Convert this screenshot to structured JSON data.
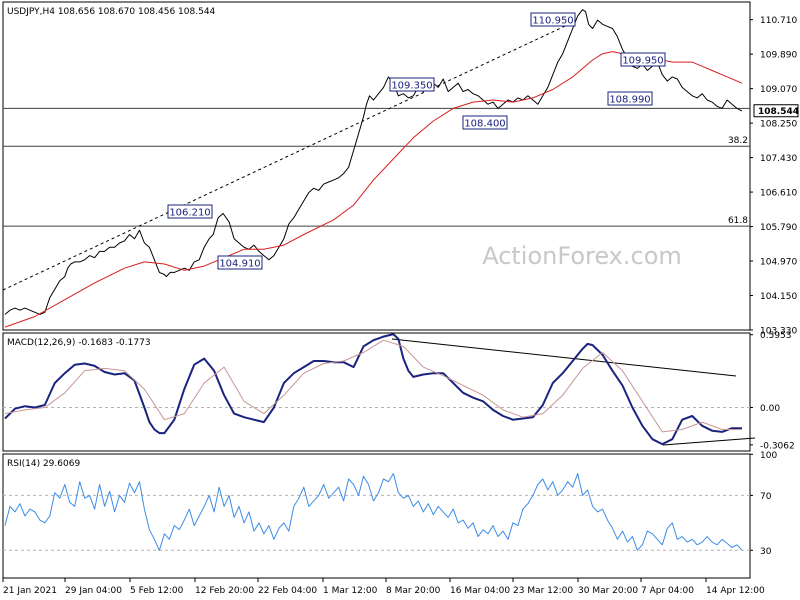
{
  "chart_data": [
    {
      "type": "line",
      "panel": "price",
      "header": "USDJPY,H4  108.656 108.670 108.456 108.544",
      "ylim": [
        103.33,
        111.13
      ],
      "y_ticks": [
        "110.710",
        "109.890",
        "109.070",
        "108.250",
        "107.430",
        "106.610",
        "105.790",
        "104.970",
        "104.150",
        "103.330"
      ],
      "x_ticks": [
        "21 Jan 2021",
        "29 Jan 04:00",
        "5 Feb 12:00",
        "12 Feb 20:00",
        "22 Feb 04:00",
        "1 Mar 12:00",
        "8 Mar 20:00",
        "16 Mar 04:00",
        "23 Mar 12:00",
        "30 Mar 20:00",
        "7 Apr 04:00",
        "14 Apr 12:00"
      ],
      "current_price": "108.544",
      "watermark": "ActionForex.com",
      "series": [
        {
          "color": "#000000",
          "x": [
            0,
            5,
            10,
            15,
            20,
            25,
            30,
            35,
            40,
            45,
            50,
            55,
            60,
            63,
            66,
            70,
            75,
            80,
            85,
            90,
            95,
            100,
            105,
            110,
            115,
            120,
            125,
            130,
            135,
            140,
            145,
            150,
            155,
            160,
            162,
            166,
            170,
            175,
            180,
            185,
            190,
            195,
            200,
            205,
            209,
            214,
            219,
            225,
            230,
            235,
            240,
            245,
            250,
            255,
            260,
            265,
            270,
            275,
            280,
            285,
            290,
            295,
            300,
            305,
            310,
            315,
            320,
            325,
            330,
            335,
            340,
            345,
            350,
            355,
            360,
            363,
            366,
            370,
            375,
            380,
            385,
            390,
            395,
            400,
            405,
            410,
            415,
            420,
            425,
            430,
            435,
            440,
            445,
            450,
            455,
            460,
            465,
            470,
            475,
            480,
            485,
            490,
            495,
            500,
            505,
            510,
            515,
            520,
            525,
            530,
            535,
            540,
            545,
            550,
            555,
            560,
            565,
            570,
            575,
            580,
            583,
            586,
            590,
            595,
            600,
            605,
            610,
            615,
            620,
            625,
            630,
            635,
            640,
            645,
            650,
            655,
            660,
            665,
            670,
            675,
            680,
            685,
            690,
            695,
            700,
            705,
            710,
            715,
            720,
            725,
            730,
            735,
            740
          ],
          "values": [
            103.7,
            103.8,
            103.85,
            103.8,
            103.85,
            103.8,
            103.75,
            103.7,
            103.75,
            104.1,
            104.3,
            104.5,
            104.6,
            104.8,
            104.9,
            104.95,
            104.95,
            105.0,
            105.1,
            105.05,
            105.2,
            105.2,
            105.3,
            105.3,
            105.4,
            105.45,
            105.6,
            105.5,
            105.7,
            105.4,
            105.3,
            105.0,
            104.7,
            104.65,
            104.6,
            104.7,
            104.7,
            104.75,
            104.8,
            104.75,
            104.95,
            105.0,
            105.3,
            105.5,
            105.6,
            106.0,
            106.1,
            105.9,
            105.5,
            105.4,
            105.3,
            105.25,
            105.35,
            105.2,
            105.1,
            105.0,
            105.1,
            105.3,
            105.5,
            105.85,
            106.0,
            106.2,
            106.4,
            106.6,
            106.7,
            106.65,
            106.8,
            106.85,
            106.9,
            106.95,
            107.05,
            107.2,
            107.6,
            108.0,
            108.4,
            108.7,
            108.9,
            108.8,
            108.95,
            109.1,
            109.35,
            109.2,
            108.9,
            108.95,
            108.85,
            108.9,
            109.1,
            109.0,
            109.15,
            109.2,
            109.1,
            109.3,
            109.0,
            109.1,
            109.2,
            109.0,
            109.05,
            108.95,
            108.9,
            108.8,
            108.7,
            108.75,
            108.6,
            108.7,
            108.8,
            108.75,
            108.85,
            108.8,
            108.9,
            108.8,
            108.7,
            108.9,
            109.1,
            109.4,
            109.7,
            109.9,
            110.2,
            110.5,
            110.8,
            110.95,
            110.9,
            110.6,
            110.5,
            110.7,
            110.6,
            110.55,
            110.5,
            110.3,
            110.0,
            109.8,
            109.6,
            109.55,
            109.65,
            109.5,
            109.6,
            109.7,
            109.4,
            109.25,
            109.35,
            109.3,
            109.1,
            109.0,
            108.9,
            108.85,
            108.95,
            108.8,
            108.75,
            108.65,
            108.6,
            108.8,
            108.7,
            108.6,
            108.54
          ]
        },
        {
          "color": "#d81e1e",
          "x": [
            0,
            30,
            60,
            90,
            120,
            140,
            160,
            180,
            200,
            220,
            240,
            260,
            280,
            300,
            330,
            350,
            370,
            390,
            410,
            430,
            450,
            470,
            490,
            510,
            530,
            550,
            570,
            590,
            600,
            610,
            620,
            630,
            640,
            650,
            660,
            670,
            680,
            690,
            700,
            710,
            720,
            740
          ],
          "values": [
            103.4,
            103.65,
            104.05,
            104.45,
            104.8,
            104.95,
            104.9,
            104.75,
            104.85,
            105.05,
            105.25,
            105.25,
            105.35,
            105.6,
            105.95,
            106.3,
            106.9,
            107.4,
            107.9,
            108.3,
            108.6,
            108.75,
            108.8,
            108.75,
            108.85,
            109.05,
            109.35,
            109.75,
            109.9,
            109.95,
            109.9,
            109.85,
            109.8,
            109.75,
            109.75,
            109.7,
            109.7,
            109.7,
            109.6,
            109.5,
            109.4,
            109.2
          ]
        }
      ],
      "annotations": [
        "110.950",
        "109.350",
        "109.950",
        "108.990",
        "108.400",
        "106.210",
        "104.910"
      ],
      "levels": [
        {
          "value": 108.6
        },
        {
          "value": 107.7,
          "label": "38.2"
        },
        {
          "value": 105.8,
          "label": "61.8"
        }
      ]
    },
    {
      "type": "line",
      "panel": "macd",
      "header": "MACD(12,26,9) -0.1683 -0.1773",
      "ylim": [
        -0.3563,
        0.6093
      ],
      "y_ticks": [
        "0.5953",
        "0.00",
        "-0.3062"
      ],
      "series": [
        {
          "color": "#1a237e",
          "x": [
            0,
            10,
            20,
            30,
            40,
            50,
            60,
            70,
            80,
            90,
            100,
            110,
            120,
            130,
            140,
            145,
            150,
            155,
            160,
            170,
            180,
            190,
            200,
            210,
            220,
            230,
            240,
            250,
            260,
            270,
            280,
            290,
            300,
            310,
            320,
            330,
            340,
            350,
            360,
            370,
            380,
            390,
            395,
            400,
            405,
            410,
            420,
            430,
            440,
            450,
            460,
            470,
            480,
            490,
            500,
            510,
            520,
            530,
            540,
            550,
            560,
            570,
            580,
            585,
            590,
            600,
            610,
            620,
            630,
            640,
            650,
            660,
            670,
            680,
            690,
            700,
            710,
            720,
            730,
            740
          ],
          "values": [
            -0.09,
            -0.01,
            0.01,
            0.0,
            0.02,
            0.2,
            0.28,
            0.35,
            0.36,
            0.34,
            0.29,
            0.27,
            0.28,
            0.22,
            0.0,
            -0.12,
            -0.18,
            -0.21,
            -0.21,
            -0.1,
            0.15,
            0.35,
            0.4,
            0.3,
            0.1,
            -0.05,
            -0.08,
            -0.1,
            -0.12,
            0.0,
            0.2,
            0.28,
            0.33,
            0.38,
            0.38,
            0.37,
            0.37,
            0.33,
            0.5,
            0.55,
            0.58,
            0.6,
            0.56,
            0.4,
            0.3,
            0.25,
            0.27,
            0.28,
            0.28,
            0.2,
            0.12,
            0.08,
            0.05,
            -0.02,
            -0.07,
            -0.1,
            -0.09,
            -0.08,
            0.02,
            0.2,
            0.28,
            0.38,
            0.48,
            0.52,
            0.51,
            0.43,
            0.3,
            0.18,
            0.0,
            -0.15,
            -0.26,
            -0.3,
            -0.26,
            -0.1,
            -0.07,
            -0.15,
            -0.19,
            -0.2,
            -0.17,
            -0.17
          ]
        },
        {
          "color": "#c89696",
          "x": [
            0,
            20,
            40,
            60,
            80,
            100,
            120,
            140,
            160,
            180,
            200,
            220,
            240,
            260,
            280,
            300,
            320,
            340,
            360,
            380,
            400,
            420,
            440,
            460,
            480,
            500,
            520,
            540,
            560,
            580,
            600,
            620,
            640,
            660,
            680,
            700,
            720,
            740
          ],
          "values": [
            -0.05,
            -0.02,
            0.0,
            0.12,
            0.3,
            0.32,
            0.3,
            0.15,
            -0.1,
            -0.05,
            0.2,
            0.33,
            0.05,
            -0.05,
            0.1,
            0.28,
            0.36,
            0.38,
            0.45,
            0.55,
            0.5,
            0.33,
            0.26,
            0.18,
            0.1,
            -0.02,
            -0.08,
            -0.05,
            0.1,
            0.32,
            0.45,
            0.3,
            0.05,
            -0.2,
            -0.18,
            -0.12,
            -0.18,
            -0.18
          ]
        }
      ],
      "levels": [
        {
          "value": 0
        }
      ]
    },
    {
      "type": "line",
      "panel": "rsi",
      "header": "RSI(14) 29.6069",
      "ylim": [
        9.8,
        100.2
      ],
      "y_ticks": [
        "100",
        "70",
        "30"
      ],
      "series": [
        {
          "color": "#3c8ce6",
          "x": [
            0,
            5,
            10,
            15,
            20,
            25,
            30,
            35,
            40,
            45,
            50,
            55,
            60,
            65,
            70,
            75,
            80,
            85,
            90,
            95,
            100,
            105,
            110,
            115,
            120,
            125,
            130,
            135,
            140,
            145,
            150,
            155,
            160,
            165,
            170,
            175,
            180,
            185,
            190,
            195,
            200,
            205,
            210,
            215,
            220,
            225,
            230,
            235,
            240,
            245,
            250,
            255,
            260,
            265,
            270,
            275,
            280,
            285,
            290,
            295,
            300,
            305,
            310,
            315,
            320,
            325,
            330,
            335,
            340,
            345,
            350,
            355,
            360,
            365,
            370,
            375,
            380,
            385,
            390,
            395,
            400,
            405,
            410,
            415,
            420,
            425,
            430,
            435,
            440,
            445,
            450,
            455,
            460,
            465,
            470,
            475,
            480,
            485,
            490,
            495,
            500,
            505,
            510,
            515,
            520,
            525,
            530,
            535,
            540,
            545,
            550,
            555,
            560,
            565,
            570,
            575,
            580,
            585,
            590,
            595,
            600,
            605,
            610,
            615,
            620,
            625,
            630,
            635,
            640,
            645,
            650,
            655,
            660,
            665,
            670,
            675,
            680,
            685,
            690,
            695,
            700,
            705,
            710,
            715,
            720,
            725,
            730,
            735,
            740
          ],
          "values": [
            48,
            62,
            58,
            64,
            55,
            60,
            58,
            52,
            50,
            55,
            72,
            68,
            78,
            65,
            62,
            80,
            68,
            70,
            60,
            78,
            62,
            73,
            58,
            70,
            65,
            79,
            72,
            80,
            60,
            45,
            38,
            30,
            42,
            38,
            48,
            45,
            52,
            60,
            48,
            55,
            62,
            70,
            58,
            76,
            62,
            70,
            54,
            62,
            50,
            58,
            44,
            50,
            42,
            48,
            38,
            46,
            50,
            44,
            62,
            68,
            76,
            62,
            66,
            70,
            78,
            68,
            72,
            76,
            66,
            82,
            78,
            70,
            84,
            78,
            66,
            72,
            82,
            80,
            86,
            72,
            68,
            70,
            62,
            66,
            58,
            64,
            56,
            62,
            58,
            54,
            60,
            50,
            52,
            46,
            50,
            40,
            45,
            42,
            48,
            40,
            44,
            38,
            50,
            48,
            60,
            64,
            70,
            78,
            82,
            74,
            80,
            70,
            74,
            80,
            76,
            86,
            70,
            74,
            62,
            58,
            60,
            52,
            46,
            38,
            44,
            36,
            40,
            30,
            34,
            44,
            42,
            38,
            34,
            46,
            50,
            38,
            40,
            36,
            38,
            34,
            36,
            40,
            36,
            34,
            38,
            35,
            32,
            34,
            30
          ]
        }
      ],
      "levels": [
        {
          "value": 70
        },
        {
          "value": 30
        }
      ]
    }
  ]
}
